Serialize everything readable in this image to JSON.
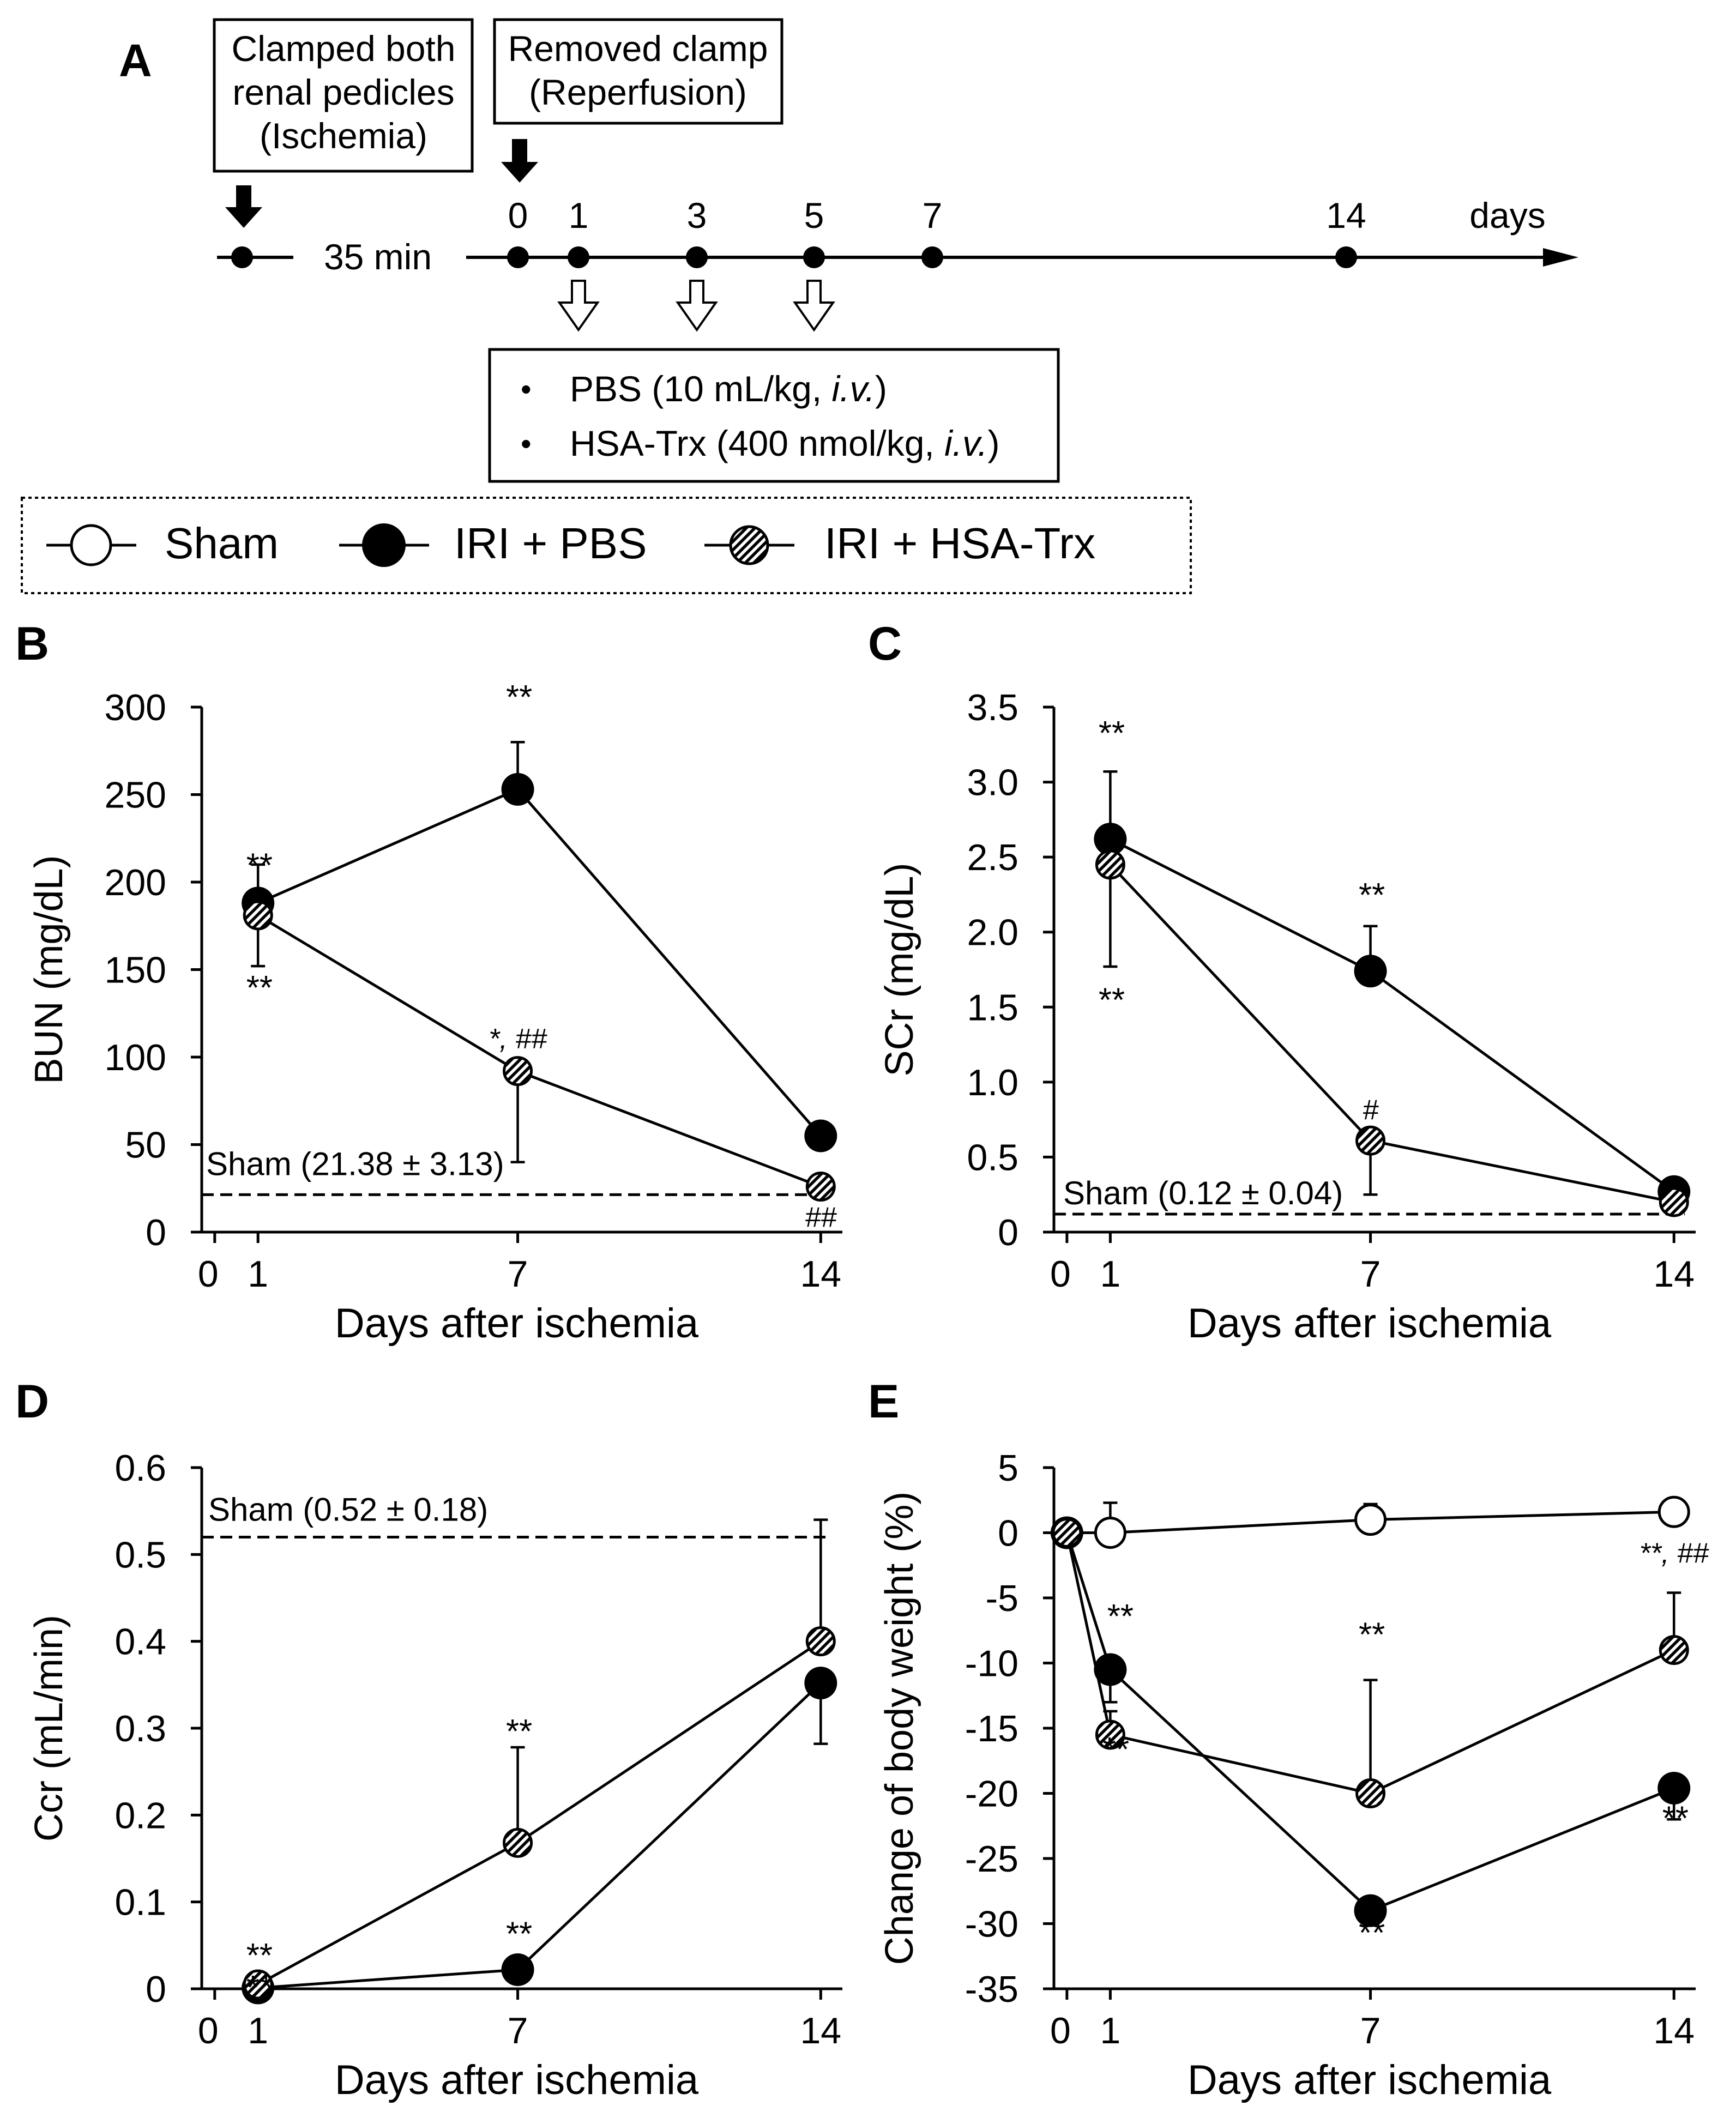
{
  "panel_a": {
    "letter": "A",
    "box_ischemia": [
      "Clamped both",
      "renal pedicles",
      "(Ischemia)"
    ],
    "box_reperfusion": [
      "Removed clamp",
      "(Reperfusion)"
    ],
    "duration_label": "35 min",
    "day_ticks": [
      "0",
      "1",
      "3",
      "5",
      "7",
      "14"
    ],
    "unit_label": "days",
    "treatment_items": [
      {
        "bullet": "•",
        "before": "PBS (10 mL/kg, ",
        "italic": "i.v.",
        "after": ")"
      },
      {
        "bullet": "•",
        "before": "HSA-Trx (400 nmol/kg, ",
        "italic": "i.v.",
        "after": ")"
      }
    ]
  },
  "legend": {
    "items": [
      {
        "key": "sham",
        "label": "Sham",
        "style": "open"
      },
      {
        "key": "pbs",
        "label": "IRI + PBS",
        "style": "filled"
      },
      {
        "key": "hsatrx",
        "label": "IRI + HSA-Trx",
        "style": "hatched"
      }
    ]
  },
  "colors": {
    "ink": "#000000",
    "background": "#ffffff",
    "open_fill": "#ffffff"
  },
  "chart_data": [
    {
      "panel": "B",
      "type": "line",
      "ylabel": "BUN (mg/dL)",
      "xlabel": "Days after ischemia",
      "ylim": [
        0,
        300
      ],
      "yticks": [
        0,
        50,
        100,
        150,
        200,
        250,
        300
      ],
      "ytick_labels": [
        "0",
        "50",
        "100",
        "150",
        "200",
        "250",
        "300"
      ],
      "xlim": [
        -0.3,
        14.5
      ],
      "xticks": [
        0,
        1,
        7,
        14
      ],
      "xtick_labels": [
        "0",
        "1",
        "7",
        "14"
      ],
      "reference": {
        "value": 21.38,
        "label": "Sham (21.38 ± 3.13)"
      },
      "series": [
        {
          "key": "pbs",
          "x": [
            1,
            7,
            14
          ],
          "y": [
            188,
            253,
            55
          ],
          "err": [
            22,
            27,
            null
          ],
          "err_dir": "up"
        },
        {
          "key": "hsatrx",
          "x": [
            1,
            7,
            14
          ],
          "y": [
            181,
            92,
            26
          ],
          "err": [
            29,
            52,
            null
          ],
          "err_dir": "down"
        }
      ],
      "annotations": [
        {
          "x": 1,
          "y": 203,
          "text": "**"
        },
        {
          "x": 1,
          "y": 133,
          "text": "**"
        },
        {
          "x": 7,
          "y": 299,
          "text": "**"
        },
        {
          "x": 7,
          "y": 105,
          "text": "*, ##"
        },
        {
          "x": 14,
          "y": 3,
          "text": "##"
        }
      ]
    },
    {
      "panel": "C",
      "type": "line",
      "ylabel": "SCr (mg/dL)",
      "xlabel": "Days after ischemia",
      "ylim": [
        0,
        3.5
      ],
      "yticks": [
        0,
        0.5,
        1.0,
        1.5,
        2.0,
        2.5,
        3.0,
        3.5
      ],
      "ytick_labels": [
        "0",
        "0.5",
        "1.0",
        "1.5",
        "2.0",
        "2.5",
        "3.0",
        "3.5"
      ],
      "xlim": [
        -0.3,
        14.5
      ],
      "xticks": [
        0,
        1,
        7,
        14
      ],
      "xtick_labels": [
        "0",
        "1",
        "7",
        "14"
      ],
      "reference": {
        "value": 0.12,
        "label": "Sham (0.12 ± 0.04)"
      },
      "series": [
        {
          "key": "pbs",
          "x": [
            1,
            7,
            14
          ],
          "y": [
            2.62,
            1.74,
            0.27
          ],
          "err": [
            0.45,
            0.3,
            null
          ],
          "err_dir": "up"
        },
        {
          "key": "hsatrx",
          "x": [
            1,
            7,
            14
          ],
          "y": [
            2.45,
            0.61,
            0.2
          ],
          "err": [
            0.68,
            0.36,
            null
          ],
          "err_dir": "down"
        }
      ],
      "annotations": [
        {
          "x": 1,
          "y": 3.25,
          "text": "**"
        },
        {
          "x": 1,
          "y": 1.47,
          "text": "**"
        },
        {
          "x": 7,
          "y": 2.17,
          "text": "**"
        },
        {
          "x": 7,
          "y": 0.75,
          "text": "#"
        }
      ]
    },
    {
      "panel": "D",
      "type": "line",
      "ylabel": "Ccr (mL/min)",
      "xlabel": "Days after ischemia",
      "ylim": [
        0,
        0.6
      ],
      "yticks": [
        0,
        0.1,
        0.2,
        0.3,
        0.4,
        0.5,
        0.6
      ],
      "ytick_labels": [
        "0",
        "0.1",
        "0.2",
        "0.3",
        "0.4",
        "0.5",
        "0.6"
      ],
      "xlim": [
        -0.3,
        14.5
      ],
      "xticks": [
        0,
        1,
        7,
        14
      ],
      "xtick_labels": [
        "0",
        "1",
        "7",
        "14"
      ],
      "reference": {
        "value": 0.52,
        "label": "Sham (0.52 ± 0.18)"
      },
      "series": [
        {
          "key": "pbs",
          "x": [
            1,
            7,
            14
          ],
          "y": [
            0.001,
            0.022,
            0.352
          ],
          "err": [
            null,
            null,
            0.07
          ],
          "err_dir": "down"
        },
        {
          "key": "hsatrx",
          "x": [
            1,
            7,
            14
          ],
          "y": [
            0.005,
            0.168,
            0.4
          ],
          "err": [
            null,
            0.11,
            0.14
          ],
          "err_dir": "up"
        }
      ],
      "annotations": [
        {
          "x": 1,
          "y": 0.025,
          "text": "**"
        },
        {
          "x": 1,
          "y": -0.012,
          "text": "**"
        },
        {
          "x": 7,
          "y": 0.283,
          "text": "**"
        },
        {
          "x": 7,
          "y": 0.05,
          "text": "**"
        }
      ]
    },
    {
      "panel": "E",
      "type": "line",
      "ylabel": "Change of body weight (%)",
      "xlabel": "Days after ischemia",
      "ylim": [
        -35,
        5
      ],
      "yticks": [
        5,
        0,
        -5,
        -10,
        -15,
        -20,
        -25,
        -30,
        -35
      ],
      "ytick_labels": [
        "5",
        "0",
        "-5",
        "-10",
        "-15",
        "-20",
        "-25",
        "-30",
        "-35"
      ],
      "xlim": [
        -0.3,
        14.5
      ],
      "xticks": [
        0,
        1,
        7,
        14
      ],
      "xtick_labels": [
        "0",
        "1",
        "7",
        "14"
      ],
      "series": [
        {
          "key": "sham",
          "x": [
            0,
            1,
            7,
            14
          ],
          "y": [
            0,
            0,
            1,
            1.6
          ],
          "err": [
            null,
            2.3,
            1.2,
            null
          ],
          "err_dir": "up"
        },
        {
          "key": "pbs",
          "x": [
            0,
            1,
            7,
            14
          ],
          "y": [
            0,
            -10.5,
            -29,
            -19.6
          ],
          "err": [
            null,
            2.5,
            null,
            2.4
          ],
          "err_dir": "down"
        },
        {
          "key": "hsatrx",
          "x": [
            0,
            1,
            7,
            14
          ],
          "y": [
            0,
            -15.5,
            -20,
            -9
          ],
          "err": [
            null,
            1.8,
            8.7,
            4.4
          ],
          "err_dir": "up"
        }
      ],
      "annotations": [
        {
          "x": 1.2,
          "y": -7.3,
          "text": "**"
        },
        {
          "x": 1.1,
          "y": -17.5,
          "text": "**"
        },
        {
          "x": 7,
          "y": -8.7,
          "text": "**"
        },
        {
          "x": 7,
          "y": -31.6,
          "text": "**"
        },
        {
          "x": 14,
          "y": -2.3,
          "text": "**, ##"
        },
        {
          "x": 14,
          "y": -22.8,
          "text": "**"
        }
      ]
    }
  ]
}
